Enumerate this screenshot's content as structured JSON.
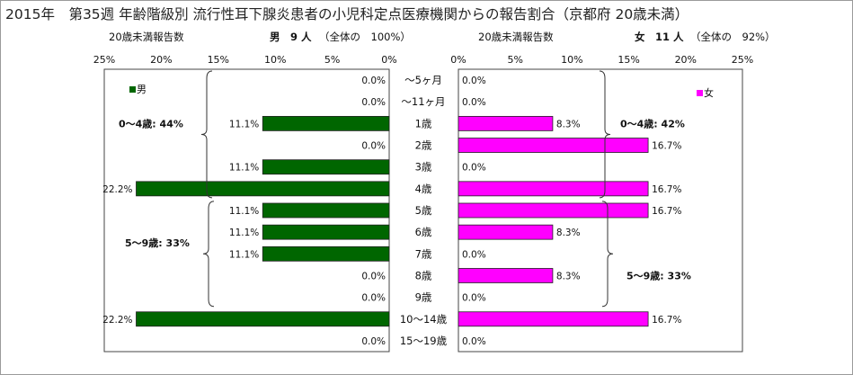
{
  "title": "2015年　第35週 年齢階級別 流行性耳下腺炎患者の小児科定点医療機関からの報告割合（京都府 20歳未満）",
  "left_header": {
    "subtitle": "20歳未満報告数",
    "series_label": "男　9 人",
    "share": "（全体の　100%）"
  },
  "right_header": {
    "subtitle": "20歳未満報告数",
    "series_label": "女　11 人",
    "share": "（全体の　92%）"
  },
  "chart_data": {
    "type": "bar",
    "categories": [
      "～5ヶ月",
      "～11ヶ月",
      "1歳",
      "2歳",
      "3歳",
      "4歳",
      "5歳",
      "6歳",
      "7歳",
      "8歳",
      "9歳",
      "10～14歳",
      "15～19歳"
    ],
    "series": [
      {
        "name": "男",
        "color": "#006600",
        "values": [
          0.0,
          0.0,
          11.1,
          0.0,
          11.1,
          22.2,
          11.1,
          11.1,
          11.1,
          0.0,
          0.0,
          22.2,
          0.0
        ],
        "labels": [
          "0.0%",
          "0.0%",
          "11.1%",
          "0.0%",
          "11.1%",
          "22.2%",
          "11.1%",
          "11.1%",
          "11.1%",
          "0.0%",
          "0.0%",
          "22.2%",
          "0.0%"
        ],
        "group_annotations": [
          "0～4歳: 44%",
          "5～9歳: 33%"
        ]
      },
      {
        "name": "女",
        "color": "#ff00ff",
        "values": [
          0.0,
          0.0,
          8.3,
          16.7,
          0.0,
          16.7,
          16.7,
          8.3,
          0.0,
          8.3,
          0.0,
          16.7,
          0.0
        ],
        "labels": [
          "0.0%",
          "0.0%",
          "8.3%",
          "16.7%",
          "0.0%",
          "16.7%",
          "16.7%",
          "8.3%",
          "0.0%",
          "8.3%",
          "0.0%",
          "16.7%",
          "0.0%"
        ],
        "group_annotations": [
          "0～4歳: 42%",
          "5～9歳: 33%"
        ]
      }
    ],
    "xlim": [
      0,
      25
    ],
    "ticks_left": [
      "25%",
      "20%",
      "15%",
      "10%",
      "5%",
      "0%"
    ],
    "ticks_right": [
      "0%",
      "5%",
      "10%",
      "15%",
      "20%",
      "25%"
    ],
    "legend_position": "top-left / top-right",
    "grid": false
  }
}
